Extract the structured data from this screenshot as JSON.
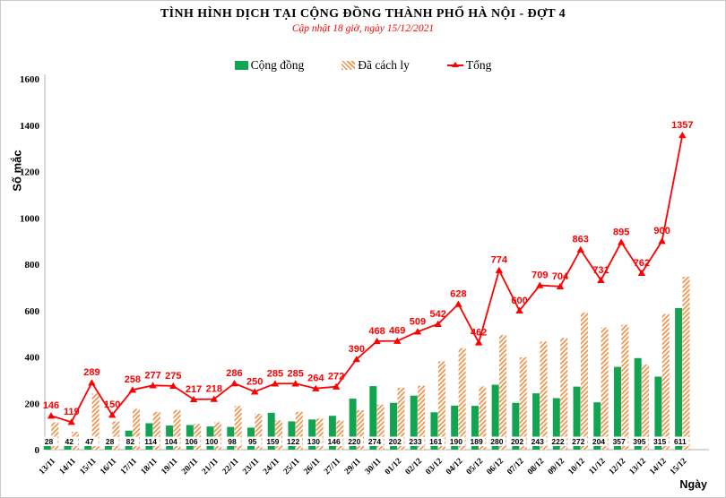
{
  "title": "TÌNH HÌNH DỊCH TẠI CỘNG ĐỒNG THÀNH PHỐ HÀ NỘI - ĐỢT 4",
  "subtitle": "Cập nhật 18 giờ, ngày 15/12/2021",
  "colors": {
    "community_green": "#13A452",
    "quarantine_orange": "#F2924A",
    "total_red": "#FF0000",
    "axis_gray": "#BFBFBF",
    "label_black": "#000000"
  },
  "chart_data": {
    "type": "bar+line",
    "title": "TÌNH HÌNH DỊCH TẠI CỘNG ĐỒNG THÀNH PHỐ HÀ NỘI - ĐỢT 4",
    "subtitle": "Cập nhật 18 giờ, ngày 15/12/2021",
    "categories": [
      "13/11",
      "14/11",
      "15/11",
      "16/11",
      "17/11",
      "18/11",
      "19/11",
      "20/11",
      "21/11",
      "22/11",
      "23/11",
      "24/11",
      "25/11",
      "26/11",
      "27/11",
      "29/11",
      "30/11",
      "01/12",
      "02/12",
      "03/12",
      "04/12",
      "05/12",
      "06/12",
      "07/12",
      "08/12",
      "09/12",
      "10/12",
      "11/12",
      "12/12",
      "13/12",
      "14/12",
      "15/12"
    ],
    "series": [
      {
        "name": "Cộng đồng",
        "type": "bar",
        "style": "solid",
        "color": "#13A452",
        "values": [
          28,
          42,
          47,
          28,
          82,
          114,
          104,
          106,
          100,
          98,
          95,
          159,
          122,
          130,
          146,
          220,
          274,
          202,
          233,
          161,
          190,
          189,
          280,
          202,
          243,
          222,
          272,
          204,
          357,
          395,
          315,
          611
        ]
      },
      {
        "name": "Đã cách ly",
        "type": "bar",
        "style": "hatched",
        "color": "#F2924A",
        "values": [
          118,
          77,
          242,
          122,
          176,
          163,
          171,
          111,
          118,
          188,
          155,
          126,
          163,
          134,
          126,
          170,
          194,
          267,
          276,
          381,
          438,
          273,
          494,
          398,
          466,
          482,
          591,
          527,
          538,
          367,
          585,
          746
        ]
      },
      {
        "name": "Tổng",
        "type": "line",
        "marker": "triangle",
        "color": "#FF0000",
        "values": [
          146,
          119,
          289,
          150,
          258,
          277,
          275,
          217,
          218,
          286,
          250,
          285,
          285,
          264,
          272,
          390,
          468,
          469,
          509,
          542,
          628,
          462,
          774,
          600,
          709,
          704,
          863,
          731,
          895,
          762,
          900,
          1357
        ]
      }
    ],
    "xlabel": "Ngày",
    "ylabel": "Số mắc",
    "ylim": [
      0,
      1600
    ],
    "ytick_step": 200,
    "grid": false,
    "legend_position": "top",
    "value_labels": {
      "cong_dong": "at-bar-base",
      "tong": "above-points"
    }
  }
}
